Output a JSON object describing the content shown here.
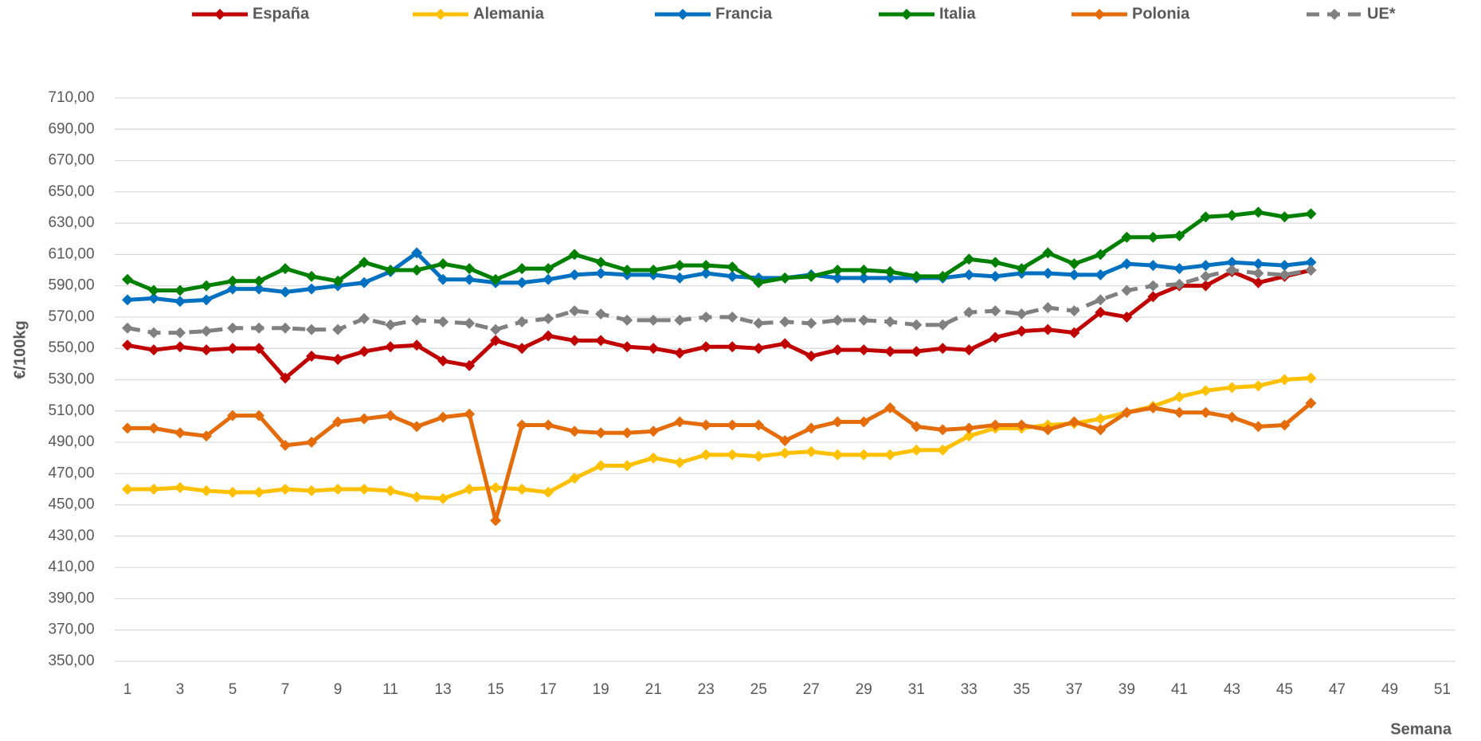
{
  "chart_data": {
    "type": "line",
    "x_label": "Semana",
    "y_label": "€/100kg",
    "x": [
      1,
      2,
      3,
      4,
      5,
      6,
      7,
      8,
      9,
      10,
      11,
      12,
      13,
      14,
      15,
      16,
      17,
      18,
      19,
      20,
      21,
      22,
      23,
      24,
      25,
      26,
      27,
      28,
      29,
      30,
      31,
      32,
      33,
      34,
      35,
      36,
      37,
      38,
      39,
      40,
      41,
      42,
      43,
      44,
      45,
      46
    ],
    "xlim": [
      0.5,
      51.5
    ],
    "xticks": [
      1,
      3,
      5,
      7,
      9,
      11,
      13,
      15,
      17,
      19,
      21,
      23,
      25,
      27,
      29,
      31,
      33,
      35,
      37,
      39,
      41,
      43,
      45,
      47,
      49,
      51
    ],
    "ylim": [
      350,
      710
    ],
    "yticks": [
      {
        "value": 350,
        "label": "350,00"
      },
      {
        "value": 370,
        "label": "370,00"
      },
      {
        "value": 390,
        "label": "390,00"
      },
      {
        "value": 410,
        "label": "410,00"
      },
      {
        "value": 430,
        "label": "430,00"
      },
      {
        "value": 450,
        "label": "450,00"
      },
      {
        "value": 470,
        "label": "470,00"
      },
      {
        "value": 490,
        "label": "490,00"
      },
      {
        "value": 510,
        "label": "510,00"
      },
      {
        "value": 530,
        "label": "530,00"
      },
      {
        "value": 550,
        "label": "550,00"
      },
      {
        "value": 570,
        "label": "570,00"
      },
      {
        "value": 590,
        "label": "590,00"
      },
      {
        "value": 610,
        "label": "610,00"
      },
      {
        "value": 630,
        "label": "630,00"
      },
      {
        "value": 650,
        "label": "650,00"
      },
      {
        "value": 670,
        "label": "670,00"
      },
      {
        "value": 690,
        "label": "690,00"
      },
      {
        "value": 710,
        "label": "710,00"
      }
    ],
    "grid": true,
    "legend_position": "top",
    "series": [
      {
        "name": "España",
        "color": "#c00000",
        "dashed": false,
        "values": [
          552,
          549,
          551,
          549,
          550,
          550,
          531,
          545,
          543,
          548,
          551,
          552,
          542,
          539,
          555,
          550,
          558,
          555,
          555,
          551,
          550,
          547,
          551,
          551,
          550,
          553,
          545,
          549,
          549,
          548,
          548,
          550,
          549,
          557,
          561,
          562,
          560,
          573,
          570,
          583,
          590,
          590,
          599,
          592,
          596,
          600
        ]
      },
      {
        "name": "Alemania",
        "color": "#ffc000",
        "dashed": false,
        "values": [
          460,
          460,
          461,
          459,
          458,
          458,
          460,
          459,
          460,
          460,
          459,
          455,
          454,
          460,
          461,
          460,
          458,
          467,
          475,
          475,
          480,
          477,
          482,
          482,
          481,
          483,
          484,
          482,
          482,
          482,
          485,
          485,
          494,
          499,
          499,
          501,
          502,
          505,
          509,
          513,
          519,
          523,
          525,
          526,
          530,
          531
        ]
      },
      {
        "name": "Francia",
        "color": "#0070c0",
        "dashed": false,
        "values": [
          581,
          582,
          580,
          581,
          588,
          588,
          586,
          588,
          590,
          592,
          599,
          611,
          594,
          594,
          592,
          592,
          594,
          597,
          598,
          597,
          597,
          595,
          598,
          596,
          595,
          595,
          597,
          595,
          595,
          595,
          595,
          595,
          597,
          596,
          598,
          598,
          597,
          597,
          604,
          603,
          601,
          603,
          605,
          604,
          603,
          605
        ]
      },
      {
        "name": "Italia",
        "color": "#008000",
        "dashed": false,
        "values": [
          594,
          587,
          587,
          590,
          593,
          593,
          601,
          596,
          593,
          605,
          600,
          600,
          604,
          601,
          594,
          601,
          601,
          610,
          605,
          600,
          600,
          603,
          603,
          602,
          592,
          595,
          596,
          600,
          600,
          599,
          596,
          596,
          607,
          605,
          601,
          611,
          604,
          610,
          621,
          621,
          622,
          634,
          635,
          637,
          634,
          636
        ]
      },
      {
        "name": "Polonia",
        "color": "#e46c0a",
        "dashed": false,
        "values": [
          499,
          499,
          496,
          494,
          507,
          507,
          488,
          490,
          503,
          505,
          507,
          500,
          506,
          508,
          440,
          501,
          501,
          497,
          496,
          496,
          497,
          503,
          501,
          501,
          501,
          491,
          499,
          503,
          503,
          512,
          500,
          498,
          499,
          501,
          501,
          498,
          503,
          498,
          509,
          512,
          509,
          509,
          506,
          500,
          501,
          515
        ]
      },
      {
        "name": "UE*",
        "color": "#808080",
        "dashed": true,
        "values": [
          563,
          560,
          560,
          561,
          563,
          563,
          563,
          562,
          562,
          569,
          565,
          568,
          567,
          566,
          562,
          567,
          569,
          574,
          572,
          568,
          568,
          568,
          570,
          570,
          566,
          567,
          566,
          568,
          568,
          567,
          565,
          565,
          573,
          574,
          572,
          576,
          574,
          581,
          587,
          590,
          591,
          596,
          600,
          598,
          597,
          600
        ]
      }
    ]
  }
}
